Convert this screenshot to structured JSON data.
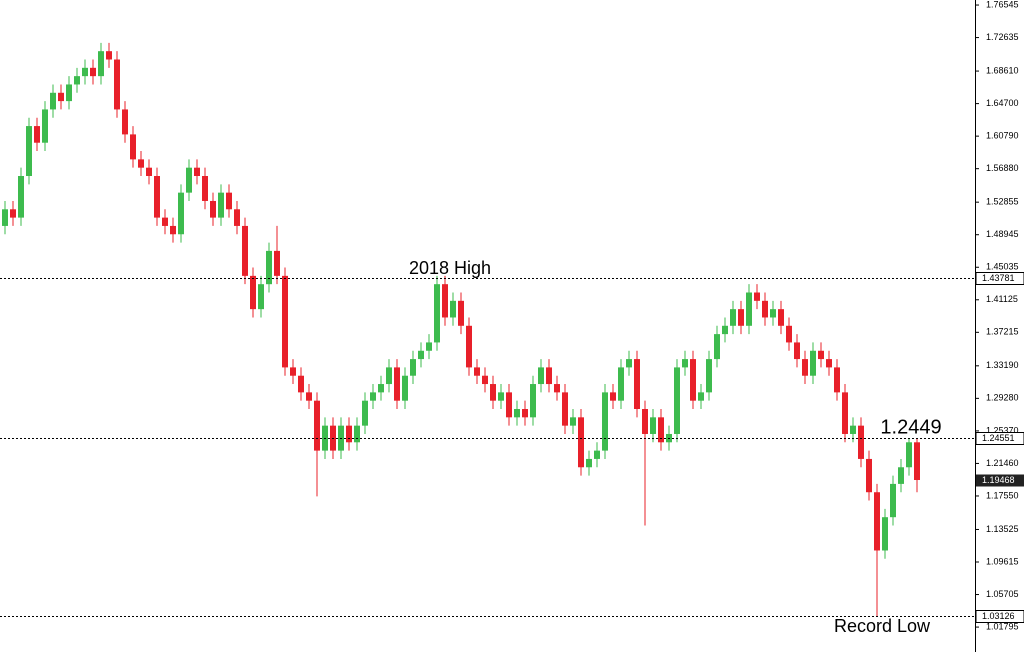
{
  "chart_data": {
    "type": "candlestick",
    "up_color": "#3dbb4e",
    "down_color": "#e8202a",
    "open": [
      1.5,
      1.52,
      1.51,
      1.56,
      1.62,
      1.6,
      1.64,
      1.66,
      1.65,
      1.67,
      1.68,
      1.69,
      1.68,
      1.71,
      1.7,
      1.64,
      1.61,
      1.58,
      1.57,
      1.56,
      1.51,
      1.5,
      1.49,
      1.54,
      1.57,
      1.56,
      1.53,
      1.51,
      1.54,
      1.52,
      1.5,
      1.44,
      1.4,
      1.43,
      1.47,
      1.44,
      1.33,
      1.32,
      1.3,
      1.29,
      1.23,
      1.26,
      1.23,
      1.26,
      1.24,
      1.26,
      1.29,
      1.3,
      1.31,
      1.33,
      1.29,
      1.32,
      1.34,
      1.35,
      1.36,
      1.43,
      1.39,
      1.41,
      1.38,
      1.33,
      1.32,
      1.31,
      1.29,
      1.3,
      1.27,
      1.28,
      1.27,
      1.31,
      1.33,
      1.31,
      1.3,
      1.26,
      1.27,
      1.21,
      1.22,
      1.23,
      1.3,
      1.29,
      1.33,
      1.34,
      1.28,
      1.25,
      1.27,
      1.24,
      1.25,
      1.33,
      1.34,
      1.29,
      1.3,
      1.34,
      1.37,
      1.38,
      1.4,
      1.38,
      1.42,
      1.41,
      1.39,
      1.4,
      1.38,
      1.36,
      1.34,
      1.32,
      1.35,
      1.34,
      1.33,
      1.3,
      1.25,
      1.26,
      1.22,
      1.18,
      1.11,
      1.15,
      1.19,
      1.21,
      1.24
    ],
    "high": [
      1.53,
      1.53,
      1.57,
      1.63,
      1.63,
      1.65,
      1.67,
      1.67,
      1.68,
      1.69,
      1.7,
      1.7,
      1.72,
      1.72,
      1.71,
      1.65,
      1.62,
      1.59,
      1.58,
      1.57,
      1.52,
      1.51,
      1.55,
      1.58,
      1.58,
      1.57,
      1.54,
      1.55,
      1.55,
      1.53,
      1.51,
      1.45,
      1.44,
      1.48,
      1.5,
      1.45,
      1.34,
      1.33,
      1.31,
      1.3,
      1.27,
      1.27,
      1.27,
      1.27,
      1.27,
      1.3,
      1.31,
      1.32,
      1.34,
      1.34,
      1.33,
      1.35,
      1.36,
      1.37,
      1.44,
      1.44,
      1.42,
      1.42,
      1.39,
      1.34,
      1.33,
      1.32,
      1.31,
      1.31,
      1.29,
      1.29,
      1.32,
      1.34,
      1.34,
      1.32,
      1.31,
      1.28,
      1.28,
      1.23,
      1.24,
      1.31,
      1.31,
      1.34,
      1.35,
      1.35,
      1.29,
      1.28,
      1.28,
      1.26,
      1.34,
      1.35,
      1.35,
      1.31,
      1.35,
      1.38,
      1.39,
      1.41,
      1.41,
      1.43,
      1.43,
      1.42,
      1.41,
      1.41,
      1.39,
      1.37,
      1.35,
      1.36,
      1.36,
      1.35,
      1.34,
      1.31,
      1.27,
      1.27,
      1.23,
      1.19,
      1.16,
      1.2,
      1.22,
      1.245,
      1.245
    ],
    "low": [
      1.49,
      1.5,
      1.5,
      1.55,
      1.59,
      1.59,
      1.63,
      1.64,
      1.64,
      1.66,
      1.67,
      1.67,
      1.67,
      1.69,
      1.63,
      1.6,
      1.57,
      1.56,
      1.55,
      1.5,
      1.49,
      1.48,
      1.48,
      1.53,
      1.55,
      1.52,
      1.5,
      1.5,
      1.51,
      1.49,
      1.43,
      1.39,
      1.39,
      1.42,
      1.43,
      1.32,
      1.31,
      1.29,
      1.28,
      1.175,
      1.22,
      1.22,
      1.22,
      1.23,
      1.23,
      1.25,
      1.28,
      1.29,
      1.3,
      1.28,
      1.28,
      1.31,
      1.33,
      1.34,
      1.35,
      1.38,
      1.38,
      1.37,
      1.32,
      1.31,
      1.3,
      1.28,
      1.28,
      1.26,
      1.26,
      1.26,
      1.26,
      1.3,
      1.3,
      1.29,
      1.25,
      1.25,
      1.2,
      1.2,
      1.21,
      1.22,
      1.28,
      1.28,
      1.32,
      1.27,
      1.14,
      1.24,
      1.23,
      1.23,
      1.24,
      1.32,
      1.28,
      1.28,
      1.29,
      1.33,
      1.36,
      1.37,
      1.37,
      1.37,
      1.4,
      1.38,
      1.38,
      1.37,
      1.35,
      1.33,
      1.31,
      1.31,
      1.33,
      1.32,
      1.29,
      1.24,
      1.24,
      1.21,
      1.17,
      1.03126,
      1.1,
      1.14,
      1.18,
      1.2,
      1.18
    ],
    "close": [
      1.52,
      1.51,
      1.56,
      1.62,
      1.6,
      1.64,
      1.66,
      1.65,
      1.67,
      1.68,
      1.69,
      1.68,
      1.71,
      1.7,
      1.64,
      1.61,
      1.58,
      1.57,
      1.56,
      1.51,
      1.5,
      1.49,
      1.54,
      1.57,
      1.56,
      1.53,
      1.51,
      1.54,
      1.52,
      1.5,
      1.44,
      1.4,
      1.43,
      1.47,
      1.44,
      1.33,
      1.32,
      1.3,
      1.29,
      1.23,
      1.26,
      1.23,
      1.26,
      1.24,
      1.26,
      1.29,
      1.3,
      1.31,
      1.33,
      1.29,
      1.32,
      1.34,
      1.35,
      1.36,
      1.43,
      1.39,
      1.41,
      1.38,
      1.33,
      1.32,
      1.31,
      1.29,
      1.3,
      1.27,
      1.28,
      1.27,
      1.31,
      1.33,
      1.31,
      1.3,
      1.26,
      1.27,
      1.21,
      1.22,
      1.23,
      1.3,
      1.29,
      1.33,
      1.34,
      1.28,
      1.25,
      1.27,
      1.24,
      1.25,
      1.33,
      1.34,
      1.29,
      1.3,
      1.34,
      1.37,
      1.38,
      1.4,
      1.38,
      1.42,
      1.41,
      1.39,
      1.4,
      1.38,
      1.36,
      1.34,
      1.32,
      1.35,
      1.34,
      1.33,
      1.3,
      1.25,
      1.26,
      1.22,
      1.18,
      1.11,
      1.15,
      1.19,
      1.21,
      1.24,
      1.19468
    ],
    "ylim": [
      0.988,
      1.7715
    ],
    "yticks": [
      1.76545,
      1.72635,
      {
        "value": 1.6861,
        "label": "1.68610"
      },
      {
        "value": 1.647,
        "label": "1.64700"
      },
      {
        "value": 1.6079,
        "label": "1.60790"
      },
      {
        "value": 1.5688,
        "label": "1.56880"
      },
      1.52855,
      1.48945,
      1.45035,
      1.41125,
      1.37215,
      {
        "value": 1.3319,
        "label": "1.33190"
      },
      {
        "value": 1.2928,
        "label": "1.29280"
      },
      {
        "value": 1.2537,
        "label": "1.25370"
      },
      {
        "value": 1.2146,
        "label": "1.21460"
      },
      {
        "value": 1.1755,
        "label": "1.17550"
      },
      1.13525,
      1.09615,
      1.05705,
      1.01795
    ],
    "levels": [
      1.43781,
      1.24551,
      1.03126
    ],
    "current_price": 1.19468,
    "annotations": [
      "2018 High",
      "1.2449",
      "Record Low"
    ]
  }
}
